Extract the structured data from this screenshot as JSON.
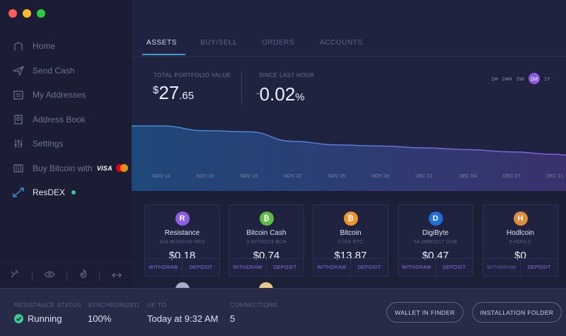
{
  "colors": {
    "accent_blue": "#3e9ad6",
    "accent_purple": "#8c5de0",
    "status_green": "#3ccb8e"
  },
  "window": {
    "controls": [
      "close",
      "minimize",
      "zoom"
    ]
  },
  "sidebar": {
    "items": [
      {
        "label": "Home",
        "icon": "home-icon"
      },
      {
        "label": "Send Cash",
        "icon": "send-icon"
      },
      {
        "label": "My Addresses",
        "icon": "wallet-icon"
      },
      {
        "label": "Address Book",
        "icon": "book-icon"
      },
      {
        "label": "Settings",
        "icon": "sliders-icon"
      },
      {
        "label": "Buy Bitcoin with",
        "icon": "card-icon",
        "card_brand": "VISA"
      },
      {
        "label": "ResDEX",
        "icon": "exchange-icon",
        "active": true
      }
    ],
    "bottom_icons": [
      "tools-icon",
      "eye-icon",
      "flame-icon",
      "swap-icon"
    ]
  },
  "tabs": [
    {
      "label": "ASSETS",
      "active": true
    },
    {
      "label": "BUY/SELL"
    },
    {
      "label": "ORDERS"
    },
    {
      "label": "ACCOUNTS"
    }
  ],
  "portfolio": {
    "total_label": "TOTAL PORTFOLIO VALUE",
    "currency": "$",
    "total_main": "27",
    "total_cents": ".65",
    "change_label": "SINCE LAST HOUR",
    "change_sign": "-",
    "change_value": "0.02",
    "change_unit": "%"
  },
  "periods": [
    "1H",
    "24H",
    "1W",
    "1M",
    "1Y"
  ],
  "selected_period": "1M",
  "chart_data": {
    "type": "area",
    "x": [
      "NOV 13",
      "NOV 16",
      "NOV 19",
      "NOV 22",
      "NOV 25",
      "NOV 28",
      "DEC 01",
      "DEC 04",
      "DEC 07",
      "DEC 11"
    ],
    "series": [
      {
        "values": [
          100,
          92,
          90,
          74,
          68,
          66,
          63,
          60,
          56,
          52
        ]
      }
    ]
  },
  "assets": [
    {
      "name": "Resistance",
      "amount": "426.46186749 RES",
      "value": "$0.18",
      "symbol": "R",
      "color": "#8c5de0",
      "withdraw": "WITHDRAW",
      "deposit": "DEPOSIT"
    },
    {
      "name": "Bitcoin Cash",
      "amount": "0.00758223 BCH",
      "value": "$0.74",
      "symbol": "₿",
      "color": "#5dbb46",
      "withdraw": "WITHDRAW",
      "deposit": "DEPOSIT"
    },
    {
      "name": "Bitcoin",
      "amount": "0.004 BTC",
      "value": "$13.87",
      "symbol": "₿",
      "color": "#f0932b",
      "withdraw": "WITHDRAW",
      "deposit": "DEPOSIT"
    },
    {
      "name": "DigiByte",
      "amount": "54.28683217 DGB",
      "value": "$0.47",
      "symbol": "D",
      "color": "#1f6fd6",
      "withdraw": "WITHDRAW",
      "deposit": "DEPOSIT"
    },
    {
      "name": "Hodlcoin",
      "amount": "0 HODLC",
      "value": "$0",
      "symbol": "H",
      "color": "#e08a3c",
      "withdraw": "WITHDRAW",
      "deposit": "DEPOSIT"
    }
  ],
  "status": {
    "resistance_label": "RESISTANCE STATUS",
    "resistance_value": "Running",
    "sync_label": "SYNCHRONIZED",
    "sync_value": "100%",
    "upto_label": "UP TO",
    "upto_value": "Today at 9:32 AM",
    "conn_label": "CONNECTIONS",
    "conn_value": "5",
    "wallet_button": "WALLET IN FINDER",
    "install_button": "INSTALLATION FOLDER"
  }
}
